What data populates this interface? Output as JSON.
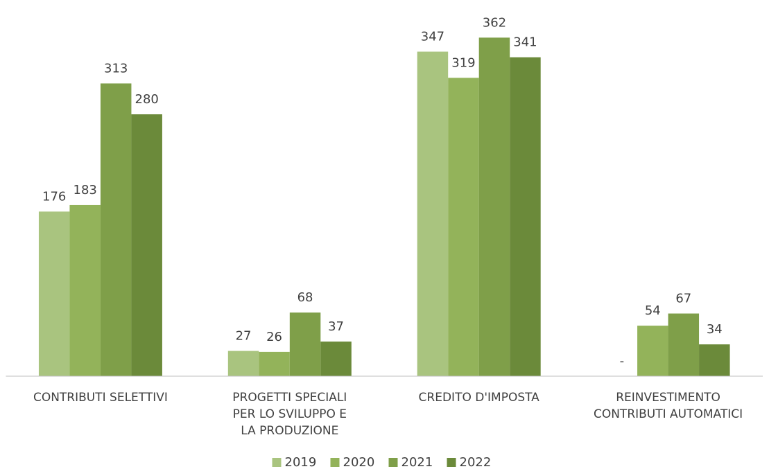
{
  "chart_data": {
    "type": "bar",
    "categories": [
      "CONTRIBUTI SELETTIVI",
      "PROGETTI SPECIALI\nPER LO SVILUPPO E\nLA PRODUZIONE",
      "CREDITO D'IMPOSTA",
      "REINVESTIMENTO\nCONTRIBUTI AUTOMATICI"
    ],
    "series": [
      {
        "name": "2019",
        "color": "#a9c47f",
        "values": [
          176,
          27,
          347,
          null
        ],
        "value_labels": [
          "176",
          "27",
          "347",
          "-"
        ]
      },
      {
        "name": "2020",
        "color": "#93b35a",
        "values": [
          183,
          26,
          319,
          54
        ]
      },
      {
        "name": "2021",
        "color": "#7f9f49",
        "values": [
          313,
          68,
          362,
          67
        ]
      },
      {
        "name": "2022",
        "color": "#6b8a3a",
        "values": [
          280,
          37,
          341,
          34
        ]
      }
    ],
    "ylim": [
      0,
      400
    ],
    "legend": "bottom"
  }
}
